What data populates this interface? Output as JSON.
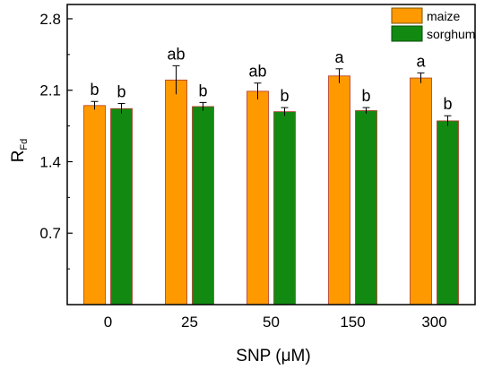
{
  "chart_data": {
    "type": "bar",
    "xlabel_prefix": "SNP (",
    "xlabel_unit": "μM",
    "xlabel_suffix": ")",
    "ylabel_main": "R",
    "ylabel_sub": "Fd",
    "categories": [
      "0",
      "25",
      "50",
      "150",
      "300"
    ],
    "ylim": [
      0,
      2.94
    ],
    "yticks": [
      "0.7",
      "1.4",
      "2.1",
      "2.8"
    ],
    "series": [
      {
        "name": "maize",
        "color": "#ff9900",
        "values": [
          1.95,
          2.2,
          2.09,
          2.24,
          2.22
        ],
        "errors": [
          0.04,
          0.14,
          0.08,
          0.07,
          0.05
        ],
        "letters": [
          "b",
          "ab",
          "ab",
          "a",
          "a"
        ]
      },
      {
        "name": "sorghum",
        "color": "#128a12",
        "values": [
          1.92,
          1.94,
          1.89,
          1.9,
          1.8
        ],
        "errors": [
          0.05,
          0.04,
          0.04,
          0.03,
          0.05
        ],
        "letters": [
          "b",
          "b",
          "b",
          "b",
          "b"
        ]
      }
    ],
    "legend_position": "top-right",
    "grid": false
  }
}
